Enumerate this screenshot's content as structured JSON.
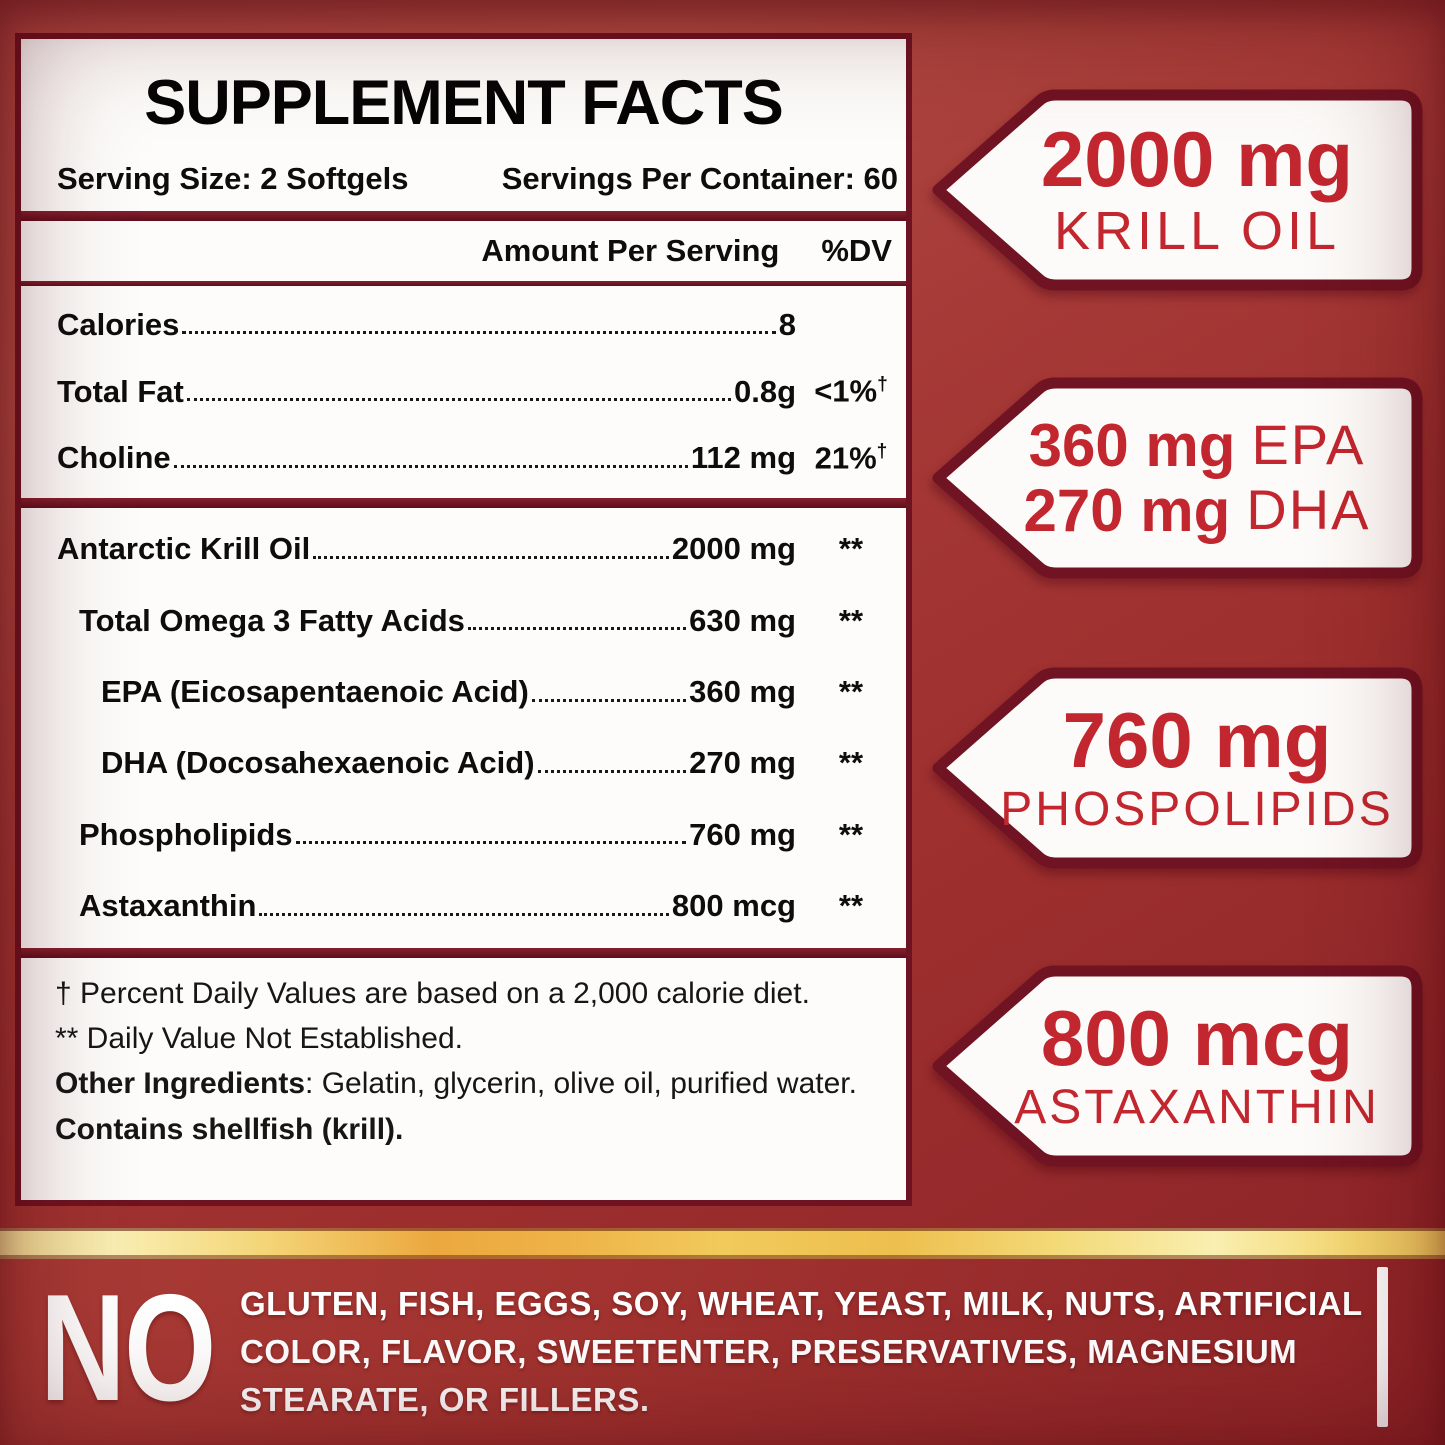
{
  "colors": {
    "accent_red": "#c2262e",
    "maroon_border": "#6d1322",
    "background_red": "#a63734",
    "gold": "#f0c75a",
    "panel_white": "#fdfcfa"
  },
  "facts_panel": {
    "title": "SUPPLEMENT FACTS",
    "serving_size": "Serving Size: 2 Softgels",
    "servings_per_container": "Servings Per Container: 60",
    "columns": {
      "amount": "Amount Per Serving",
      "dv": "%DV"
    },
    "rows_basic": [
      {
        "label": "Calories",
        "amount": "8",
        "dv": "",
        "indent": 0
      },
      {
        "label": "Total Fat",
        "amount": "0.8g",
        "dv": "<1%†",
        "indent": 0
      },
      {
        "label": "Choline",
        "amount": "112 mg",
        "dv": "21%†",
        "indent": 0
      }
    ],
    "rows_detail": [
      {
        "label": "Antarctic Krill Oil",
        "amount": "2000 mg",
        "dv": "**",
        "indent": 0
      },
      {
        "label": "Total Omega 3 Fatty Acids",
        "amount": "630 mg",
        "dv": "**",
        "indent": 1
      },
      {
        "label": "EPA (Eicosapentaenoic Acid)",
        "amount": "360 mg",
        "dv": "**",
        "indent": 2
      },
      {
        "label": "DHA (Docosahexaenoic Acid)",
        "amount": "270 mg",
        "dv": "**",
        "indent": 2
      },
      {
        "label": "Phospholipids",
        "amount": "760 mg",
        "dv": "**",
        "indent": 1
      },
      {
        "label": "Astaxanthin",
        "amount": "800 mcg",
        "dv": "**",
        "indent": 1
      }
    ],
    "footnotes": [
      {
        "bold": "",
        "text": "† Percent Daily Values are based on a 2,000 calorie diet."
      },
      {
        "bold": "",
        "text": "** Daily Value Not Established."
      },
      {
        "bold": "Other Ingredients",
        "text": ":  Gelatin, glycerin, olive oil, purified water."
      },
      {
        "bold": "Contains shellfish (krill).",
        "text": ""
      }
    ]
  },
  "banners": [
    {
      "lines": [
        {
          "strong": "2000 mg"
        },
        {
          "light": "KRILL OIL"
        }
      ]
    },
    {
      "lines": [
        {
          "strong": "360 mg",
          "light": "EPA"
        },
        {
          "strong": "270 mg",
          "light": "DHA"
        }
      ]
    },
    {
      "lines": [
        {
          "strong": "760 mg"
        },
        {
          "light": "PHOSPOLIPIDS"
        }
      ]
    },
    {
      "lines": [
        {
          "strong": "800 mcg"
        },
        {
          "light": "ASTAXANTHIN"
        }
      ]
    }
  ],
  "bottom_banner": {
    "no": "NO",
    "lines": [
      "GLUTEN, FISH, EGGS, SOY, WHEAT, YEAST, MILK, NUTS, ARTIFICIAL",
      "COLOR, FLAVOR, SWEETENTER, PRESERVATIVES, MAGNESIUM",
      "STEARATE, OR FILLERS."
    ]
  }
}
